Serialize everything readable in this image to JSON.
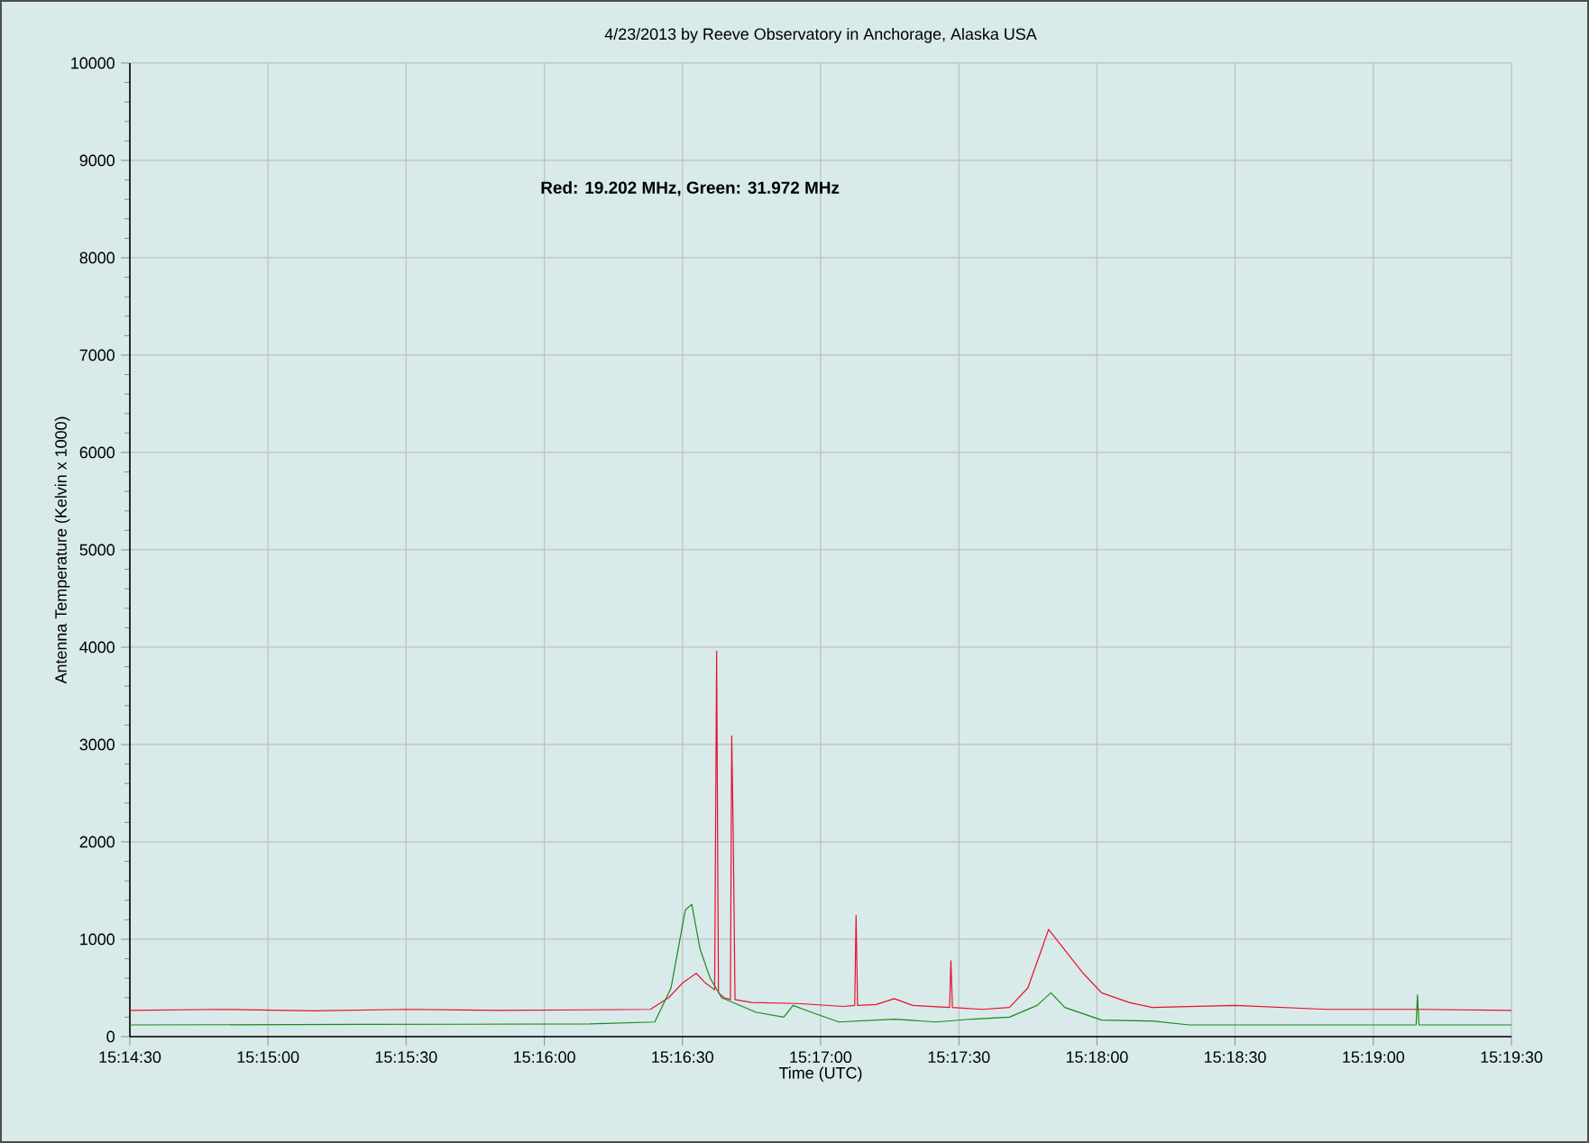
{
  "chart_data": {
    "type": "line",
    "title": "4/23/2013  by  Reeve Observatory  in  Anchorage, Alaska  USA",
    "xlabel": "Time (UTC)",
    "ylabel": "Antenna Temperature (Kelvin x 1000)",
    "annotations": [
      "**Red: 19.202 MHz, Green: 31.972 MHz**"
    ],
    "xlim": [
      15.24167,
      15.325
    ],
    "ylim": [
      0,
      10000
    ],
    "xticks": [
      {
        "value": 15.24167,
        "label": "15:14:30"
      },
      {
        "value": 15.25,
        "label": "15:15:00"
      },
      {
        "value": 15.25833,
        "label": "15:15:30"
      },
      {
        "value": 15.26667,
        "label": "15:16:00"
      },
      {
        "value": 15.275,
        "label": "15:16:30"
      },
      {
        "value": 15.28333,
        "label": "15:17:00"
      },
      {
        "value": 15.29167,
        "label": "15:17:30"
      },
      {
        "value": 15.3,
        "label": "15:18:00"
      },
      {
        "value": 15.30833,
        "label": "15:18:30"
      },
      {
        "value": 15.31667,
        "label": "15:19:00"
      },
      {
        "value": 15.325,
        "label": "15:19:30"
      }
    ],
    "yticks": [
      0,
      1000,
      2000,
      3000,
      4000,
      5000,
      6000,
      7000,
      8000,
      9000,
      10000
    ],
    "grid": true,
    "series": [
      {
        "color": "#e8102a",
        "x": [
          15.24167,
          15.24722,
          15.25278,
          15.25833,
          15.26389,
          15.26944,
          15.27306,
          15.27417,
          15.275,
          15.27583,
          15.27639,
          15.27694,
          15.27706,
          15.27717,
          15.2775,
          15.27789,
          15.27797,
          15.27806,
          15.27817,
          15.27917,
          15.28194,
          15.28472,
          15.28539,
          15.28547,
          15.28556,
          15.28667,
          15.28778,
          15.28889,
          15.29111,
          15.29119,
          15.29128,
          15.29306,
          15.29472,
          15.29583,
          15.29667,
          15.29708,
          15.29778,
          15.29917,
          15.30028,
          15.30194,
          15.30333,
          15.30833,
          15.31389,
          15.31944,
          15.325
        ],
        "values": [
          270,
          280,
          265,
          280,
          270,
          275,
          280,
          400,
          550,
          650,
          550,
          480,
          3960,
          450,
          400,
          380,
          3090,
          2100,
          380,
          350,
          340,
          310,
          320,
          1245,
          320,
          330,
          390,
          320,
          300,
          780,
          300,
          280,
          300,
          500,
          900,
          1100,
          950,
          650,
          450,
          350,
          300,
          320,
          280,
          280,
          270
        ]
      },
      {
        "color": "#1a8a1a",
        "x": [
          15.24167,
          15.25556,
          15.26944,
          15.27333,
          15.27431,
          15.27517,
          15.27556,
          15.27606,
          15.27667,
          15.27736,
          15.27944,
          15.28111,
          15.28167,
          15.28278,
          15.28444,
          15.28778,
          15.29028,
          15.2925,
          15.29472,
          15.29639,
          15.29722,
          15.29806,
          15.30028,
          15.30333,
          15.30556,
          15.31925,
          15.31933,
          15.31942,
          15.325
        ],
        "values": [
          120,
          125,
          130,
          150,
          500,
          1300,
          1360,
          900,
          600,
          400,
          250,
          200,
          320,
          250,
          150,
          180,
          150,
          180,
          200,
          320,
          450,
          300,
          170,
          160,
          120,
          120,
          430,
          120,
          120
        ]
      }
    ]
  }
}
